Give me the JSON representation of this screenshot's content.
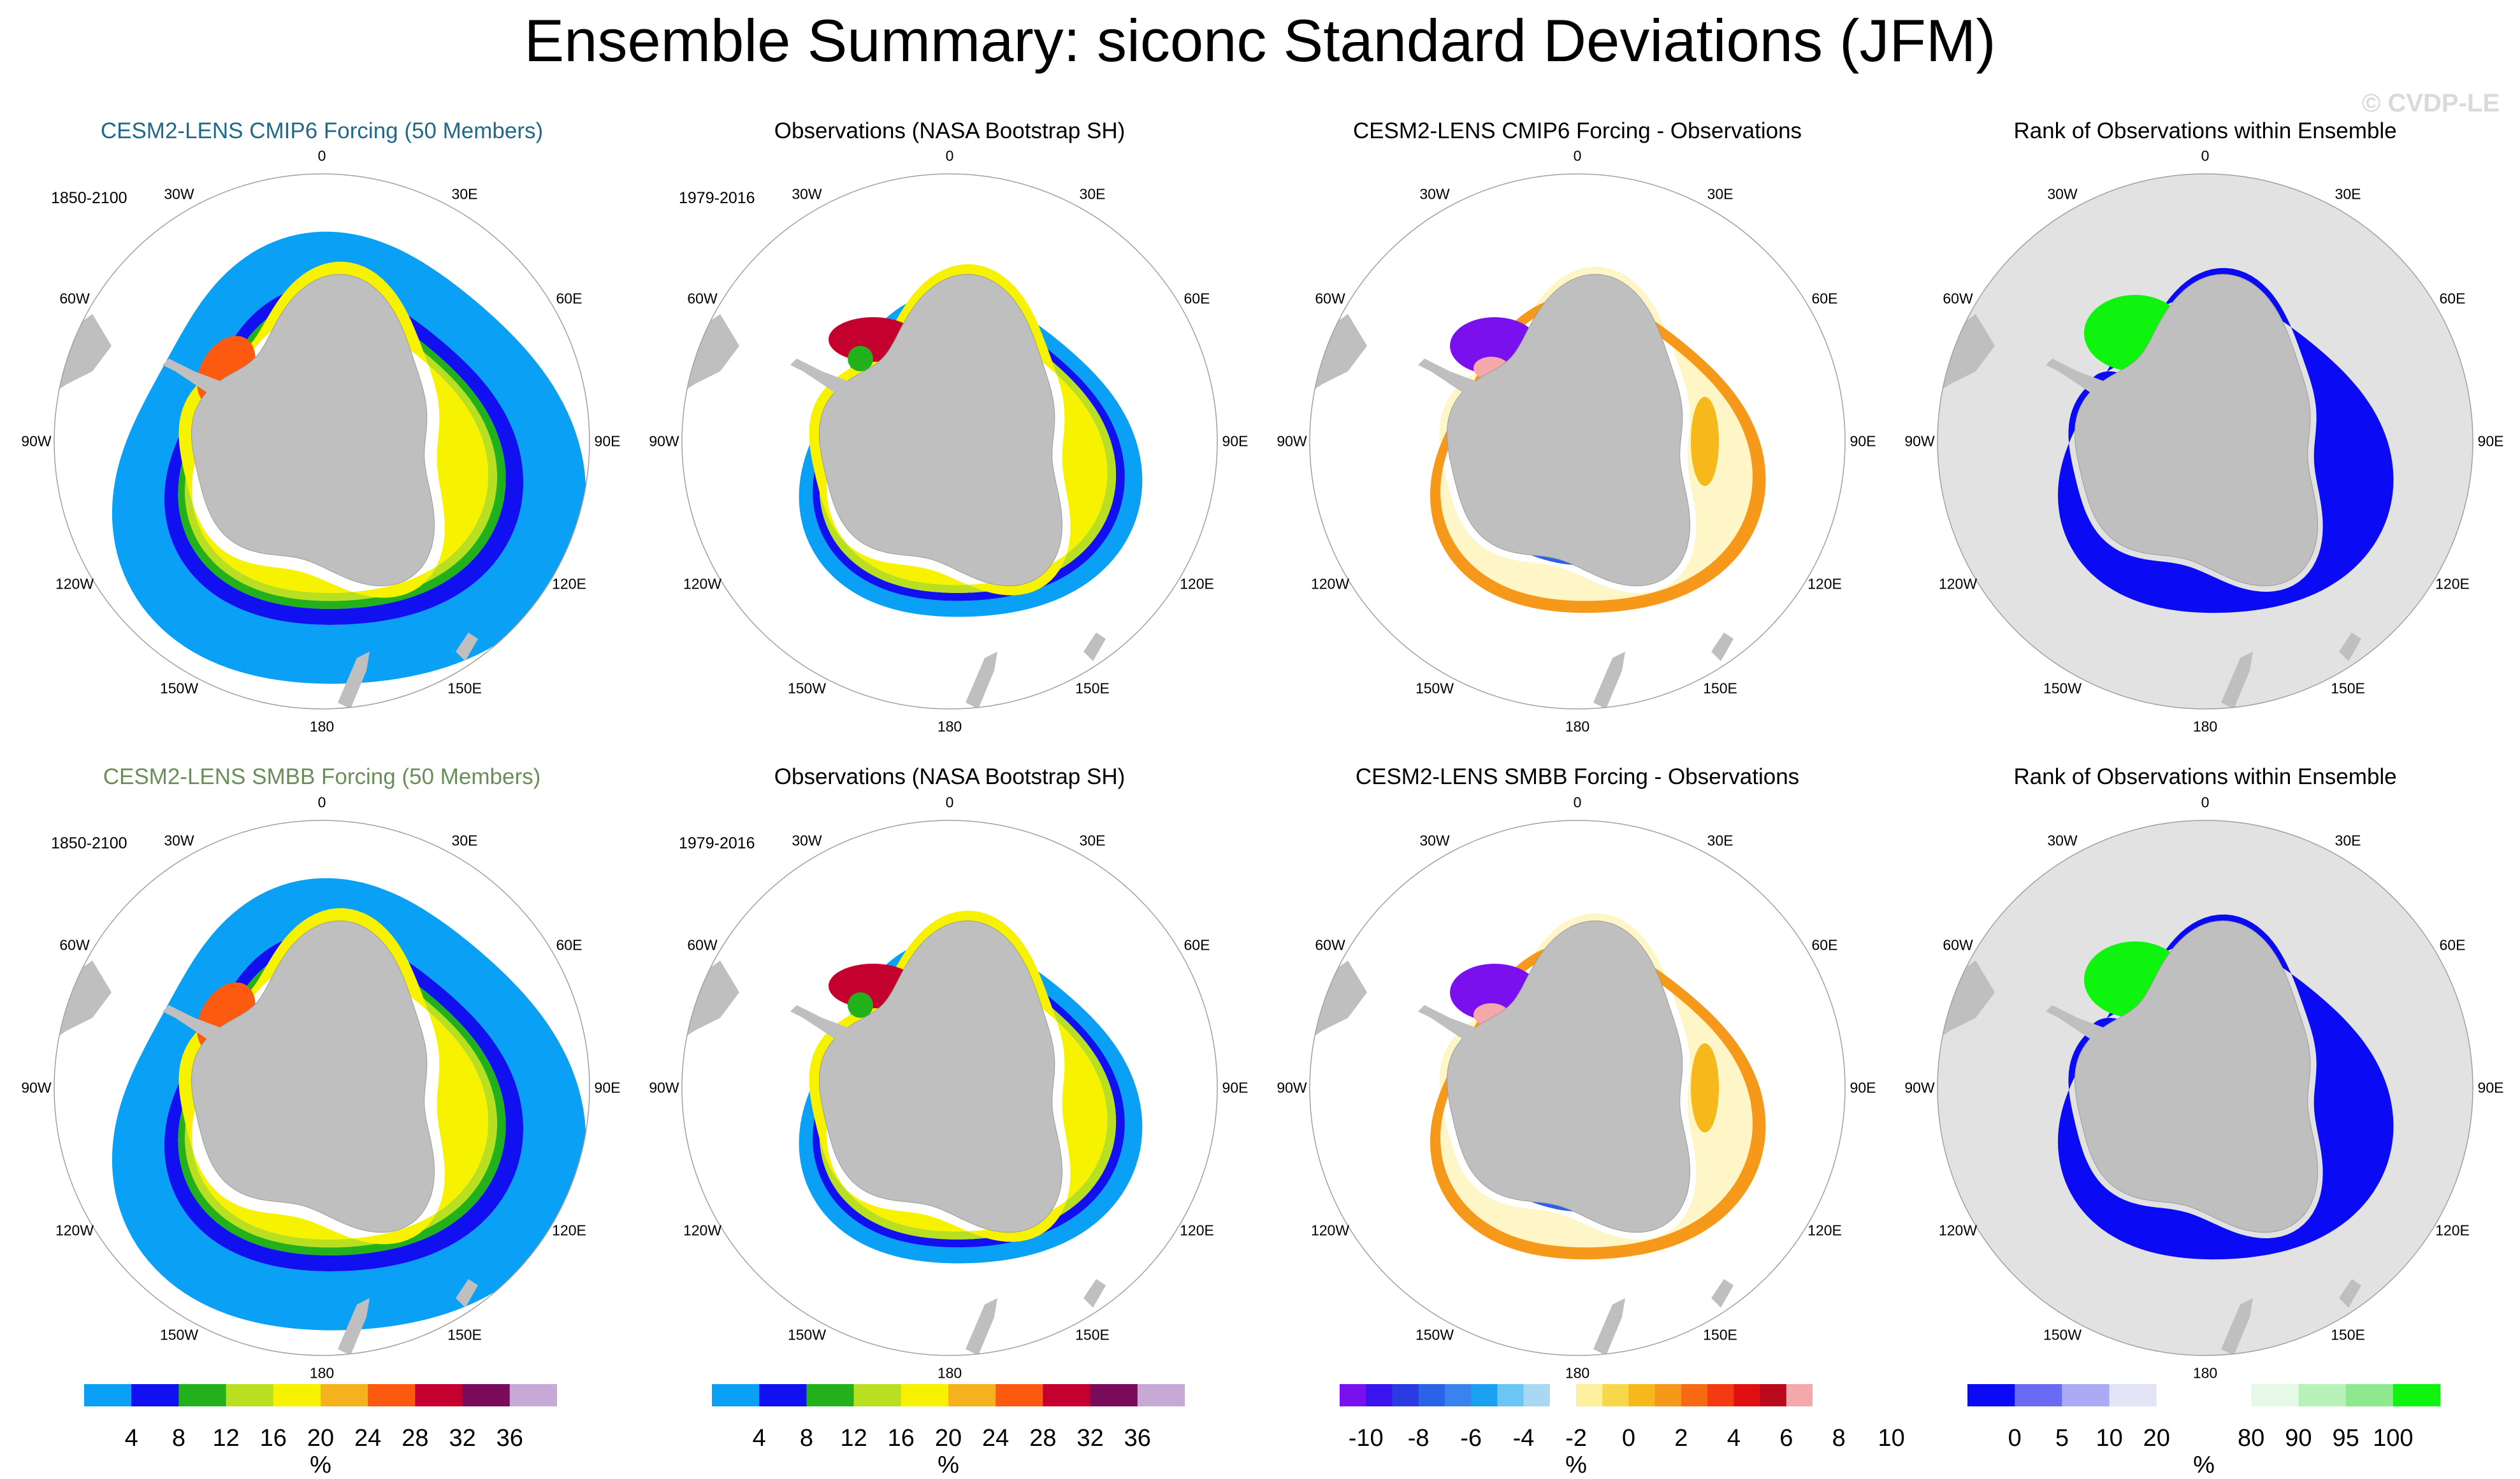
{
  "title": "Ensemble Summary: siconc Standard Deviations (JFM)",
  "watermark": "© CVDP-LE",
  "chart_data": {
    "type": "polar-map-grid",
    "projection": "south-polar-stereographic",
    "lon_labels": [
      "0",
      "30E",
      "60E",
      "90E",
      "120E",
      "150E",
      "180",
      "150W",
      "120W",
      "90W",
      "60W",
      "30W"
    ],
    "rows": [
      {
        "panels": [
          {
            "title": "CESM2-LENS CMIP6 Forcing (50 Members)",
            "title_color": "#1f6a8a",
            "date_range": "1850-2100",
            "field": "ensemble_stddev"
          },
          {
            "title": "Observations (NASA Bootstrap SH)",
            "title_color": "#000000",
            "date_range": "1979-2016",
            "field": "obs_stddev"
          },
          {
            "title": "CESM2-LENS CMIP6 Forcing - Observations",
            "title_color": "#000000",
            "date_range": "",
            "field": "difference"
          },
          {
            "title": "Rank of Observations within Ensemble",
            "title_color": "#000000",
            "date_range": "",
            "field": "rank"
          }
        ]
      },
      {
        "panels": [
          {
            "title": "CESM2-LENS SMBB Forcing (50 Members)",
            "title_color": "#6a8e5a",
            "date_range": "1850-2100",
            "field": "ensemble_stddev"
          },
          {
            "title": "Observations (NASA Bootstrap SH)",
            "title_color": "#000000",
            "date_range": "1979-2016",
            "field": "obs_stddev"
          },
          {
            "title": "CESM2-LENS SMBB Forcing - Observations",
            "title_color": "#000000",
            "date_range": "",
            "field": "difference"
          },
          {
            "title": "Rank of Observations within Ensemble",
            "title_color": "#000000",
            "date_range": "",
            "field": "rank"
          }
        ]
      }
    ],
    "colorbars": [
      {
        "unit": "%",
        "ticks": [
          "4",
          "8",
          "12",
          "16",
          "20",
          "24",
          "28",
          "32",
          "36"
        ],
        "colors": [
          "#0aa0f5",
          "#1010f0",
          "#22b11a",
          "#b8e020",
          "#f6f200",
          "#f6b21e",
          "#fb5a10",
          "#c4002f",
          "#7a0a5a",
          "#c8a8d4"
        ]
      },
      {
        "unit": "%",
        "ticks": [
          "4",
          "8",
          "12",
          "16",
          "20",
          "24",
          "28",
          "32",
          "36"
        ],
        "colors": [
          "#0aa0f5",
          "#1010f0",
          "#22b11a",
          "#b8e020",
          "#f6f200",
          "#f6b21e",
          "#fb5a10",
          "#c4002f",
          "#7a0a5a",
          "#c8a8d4"
        ]
      },
      {
        "unit": "%",
        "ticks": [
          "-10",
          "-8",
          "-6",
          "-4",
          "-2",
          "0",
          "2",
          "4",
          "6",
          "8",
          "10"
        ],
        "colors": [
          "#7a10ee",
          "#3a14ee",
          "#2a3ce0",
          "#2a62e8",
          "#3a82ee",
          "#1aa0f0",
          "#6ac6f4",
          "#a8d8f2",
          "#ffffff",
          "#fff0a0",
          "#f8d84a",
          "#f6b81a",
          "#f6981a",
          "#f66a14",
          "#f33a10",
          "#e11010",
          "#b80a1a",
          "#f4a8aa"
        ]
      },
      {
        "unit": "%",
        "ticks": [
          "0",
          "5",
          "10",
          "20",
          "80",
          "90",
          "95",
          "100"
        ],
        "colors": [
          "#0a0af5",
          "#6a6af5",
          "#aaaaf5",
          "#e4e4f8",
          "#ffffff",
          "#ffffff",
          "#e6f8e6",
          "#b8f2b8",
          "#8ee88e",
          "#0ef40e"
        ]
      }
    ]
  }
}
